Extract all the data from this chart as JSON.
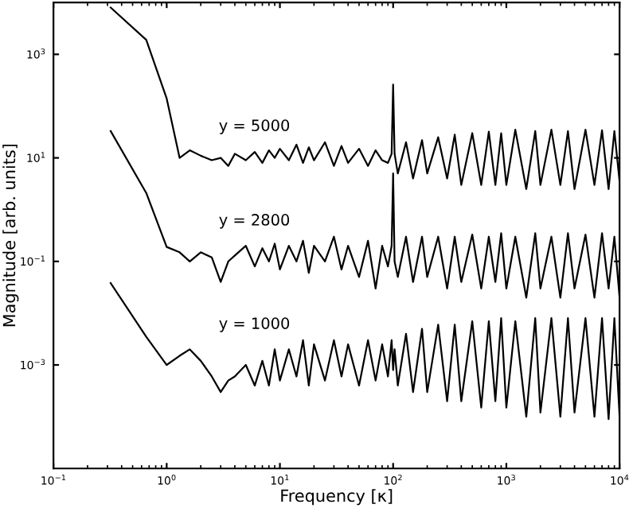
{
  "chart_data": {
    "type": "line",
    "xlabel": "Frequency [κ]",
    "ylabel": "Magnitude [arb. units]",
    "log": "xy",
    "grid": false,
    "legend": false,
    "marker": "none",
    "line_style": "solid",
    "xlim": [
      0.1,
      10000
    ],
    "ylim": [
      1e-05,
      10000
    ],
    "xticks": [
      {
        "value": 0.1,
        "label": "10$^{−1}$"
      },
      {
        "value": 1,
        "label": "10$^{0}$"
      },
      {
        "value": 10,
        "label": "10$^{1}$"
      },
      {
        "value": 100,
        "label": "10$^{2}$"
      },
      {
        "value": 1000,
        "label": "10$^{3}$"
      },
      {
        "value": 10000,
        "label": "10$^{4}$"
      }
    ],
    "yticks": [
      {
        "value": 0.001,
        "label": "10$^{−3}$"
      },
      {
        "value": 0.1,
        "label": "10$^{−1}$"
      },
      {
        "value": 10,
        "label": "10$^{1}$"
      },
      {
        "value": 1000,
        "label": "10$^{3}$"
      }
    ],
    "x": [
      0.32,
      0.66,
      1.0,
      1.3,
      1.6,
      2.0,
      2.5,
      3.0,
      3.5,
      4,
      5,
      6,
      7,
      8,
      9,
      10,
      12,
      14,
      16,
      18,
      20,
      25,
      30,
      35,
      40,
      50,
      60,
      70,
      80,
      90,
      97,
      100,
      103,
      110,
      130,
      150,
      180,
      200,
      250,
      300,
      350,
      400,
      500,
      600,
      700,
      800,
      900,
      1000,
      1200,
      1500,
      1800,
      2000,
      2500,
      3000,
      3500,
      4000,
      5000,
      6000,
      7000,
      8000,
      9000,
      10000
    ],
    "series": [
      {
        "name": "y = 5000",
        "color": "#000000",
        "values": [
          8000,
          1900,
          140,
          10,
          14,
          11,
          9,
          10,
          7,
          12,
          9,
          13,
          8,
          14,
          10,
          15,
          9,
          18,
          8,
          16,
          9,
          20,
          7,
          17,
          8,
          15,
          7,
          14,
          9,
          8,
          12,
          260,
          12,
          5,
          20,
          4,
          22,
          5,
          25,
          4,
          28,
          3,
          30,
          3,
          32,
          3,
          30,
          3,
          35,
          2.5,
          33,
          3,
          35,
          3,
          33,
          2.5,
          35,
          3,
          34,
          2.5,
          33,
          3.5
        ]
      },
      {
        "name": "y = 2800",
        "color": "#000000",
        "values": [
          33,
          2.1,
          0.19,
          0.15,
          0.1,
          0.15,
          0.12,
          0.04,
          0.1,
          0.13,
          0.2,
          0.08,
          0.18,
          0.1,
          0.22,
          0.07,
          0.2,
          0.1,
          0.25,
          0.06,
          0.2,
          0.1,
          0.3,
          0.07,
          0.2,
          0.05,
          0.25,
          0.03,
          0.2,
          0.08,
          0.2,
          5,
          0.1,
          0.05,
          0.3,
          0.04,
          0.3,
          0.05,
          0.3,
          0.03,
          0.3,
          0.04,
          0.33,
          0.03,
          0.3,
          0.04,
          0.35,
          0.03,
          0.3,
          0.02,
          0.35,
          0.03,
          0.3,
          0.02,
          0.35,
          0.03,
          0.33,
          0.02,
          0.35,
          0.03,
          0.3,
          0.02
        ]
      },
      {
        "name": "y = 1000",
        "color": "#000000",
        "values": [
          0.038,
          0.0035,
          0.001,
          0.0015,
          0.002,
          0.0012,
          0.0006,
          0.0003,
          0.0005,
          0.0006,
          0.001,
          0.0004,
          0.0012,
          0.0004,
          0.002,
          0.0005,
          0.002,
          0.0006,
          0.003,
          0.0004,
          0.0025,
          0.0005,
          0.003,
          0.0006,
          0.0025,
          0.0004,
          0.003,
          0.0005,
          0.0025,
          0.0006,
          0.003,
          0.0008,
          0.002,
          0.0004,
          0.004,
          0.0003,
          0.005,
          0.0003,
          0.006,
          0.0002,
          0.006,
          0.0002,
          0.007,
          0.00015,
          0.007,
          0.0002,
          0.008,
          0.00015,
          0.007,
          0.0001,
          0.008,
          0.00012,
          0.008,
          0.0001,
          0.008,
          0.00012,
          0.008,
          0.0001,
          0.008,
          9e-05,
          0.008,
          0.0001
        ]
      }
    ]
  }
}
